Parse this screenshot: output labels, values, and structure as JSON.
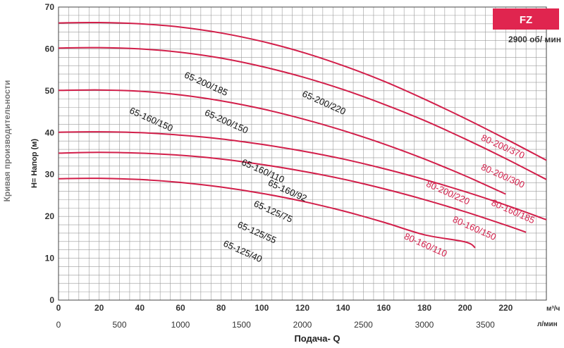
{
  "chart_data": {
    "type": "line",
    "title": "",
    "badge": "FZ",
    "speed": "2900 об/ мин",
    "side_label": "Кривая производительности",
    "ylabel": "H= Напор (м)",
    "xlabel": "Подача- Q",
    "x_unit_primary": "м³/ч",
    "x_unit_secondary": "л/мин",
    "ylim": [
      0,
      70
    ],
    "xlim": [
      0,
      240
    ],
    "y_ticks": [
      0,
      10,
      20,
      30,
      40,
      50,
      60,
      70
    ],
    "x_ticks_primary": [
      0,
      20,
      40,
      60,
      80,
      100,
      120,
      140,
      160,
      180,
      200,
      220
    ],
    "x_ticks_secondary": [
      0,
      500,
      1000,
      1500,
      2000,
      2500,
      3000,
      3500
    ],
    "grid": true,
    "series": [
      {
        "x": [
          0,
          20,
          40,
          60,
          80,
          100,
          120,
          140,
          160,
          180,
          200,
          220,
          240
        ],
        "y": [
          66.2,
          66.3,
          66.0,
          65.2,
          63.8,
          61.8,
          59.2,
          56.0,
          52.3,
          48.0,
          43.4,
          38.5,
          33.4
        ]
      },
      {
        "x": [
          0,
          20,
          40,
          60,
          80,
          100,
          120,
          140,
          160,
          180,
          200,
          220,
          240
        ],
        "y": [
          60.2,
          60.3,
          60.0,
          59.2,
          57.8,
          55.8,
          53.3,
          50.3,
          46.8,
          42.9,
          38.5,
          33.8,
          28.8
        ]
      },
      {
        "x": [
          0,
          20,
          40,
          60,
          80,
          100,
          120,
          140,
          160,
          180,
          200,
          220
        ],
        "y": [
          50.1,
          50.2,
          49.9,
          49.0,
          47.6,
          45.7,
          43.3,
          40.5,
          37.3,
          33.7,
          29.7,
          25.3
        ]
      },
      {
        "x": [
          0,
          20,
          40,
          60,
          80,
          100,
          120,
          140,
          160,
          180,
          200,
          220,
          240
        ],
        "y": [
          40.1,
          40.2,
          40.0,
          39.4,
          38.5,
          37.2,
          35.6,
          33.7,
          31.4,
          28.8,
          25.9,
          22.7,
          19.2
        ]
      },
      {
        "x": [
          0,
          20,
          40,
          60,
          80,
          100,
          120,
          140,
          160,
          180,
          200,
          220,
          230
        ],
        "y": [
          35.1,
          35.3,
          35.1,
          34.6,
          33.7,
          32.4,
          30.8,
          28.9,
          26.6,
          24.0,
          21.1,
          17.9,
          16.2
        ]
      },
      {
        "x": [
          0,
          20,
          40,
          60,
          80,
          100,
          120,
          140,
          160,
          180,
          200,
          205
        ],
        "y": [
          29.0,
          29.1,
          28.8,
          28.1,
          27.0,
          25.5,
          23.6,
          21.3,
          18.6,
          15.6,
          13.9,
          12.5
        ]
      }
    ],
    "annotations": [
      {
        "text": "65-200/220",
        "x": 130,
        "y": 46.5,
        "angle": 24,
        "color": "dark"
      },
      {
        "text": "65-200/185",
        "x": 72,
        "y": 51.0,
        "angle": 24,
        "color": "dark"
      },
      {
        "text": "65-160/150",
        "x": 45,
        "y": 42.5,
        "angle": 24,
        "color": "dark"
      },
      {
        "text": "65-200/150",
        "x": 82,
        "y": 42.0,
        "angle": 24,
        "color": "dark"
      },
      {
        "text": "65-160/110",
        "x": 100,
        "y": 30.2,
        "angle": 24,
        "color": "dark"
      },
      {
        "text": "65-160/92",
        "x": 112,
        "y": 25.5,
        "angle": 24,
        "color": "dark"
      },
      {
        "text": "65-125/75",
        "x": 105,
        "y": 20.5,
        "angle": 24,
        "color": "dark"
      },
      {
        "text": "65-125/55",
        "x": 97,
        "y": 15.5,
        "angle": 24,
        "color": "dark"
      },
      {
        "text": "65-125/40",
        "x": 90,
        "y": 11.0,
        "angle": 24,
        "color": "dark"
      },
      {
        "text": "80-200/370",
        "x": 218,
        "y": 36.0,
        "angle": 24,
        "color": "red"
      },
      {
        "text": "80-200/300",
        "x": 218,
        "y": 29.0,
        "angle": 24,
        "color": "red"
      },
      {
        "text": "80-200/220",
        "x": 191,
        "y": 25.0,
        "angle": 24,
        "color": "red"
      },
      {
        "text": "80-160/185",
        "x": 223,
        "y": 20.5,
        "angle": 24,
        "color": "red"
      },
      {
        "text": "80-160/150",
        "x": 204,
        "y": 16.5,
        "angle": 24,
        "color": "red"
      },
      {
        "text": "80-160/110",
        "x": 180,
        "y": 12.5,
        "angle": 24,
        "color": "red"
      }
    ],
    "colors": {
      "curve": "#d21f4a",
      "badge": "#e0254f",
      "grid": "#9a9a9a"
    }
  }
}
